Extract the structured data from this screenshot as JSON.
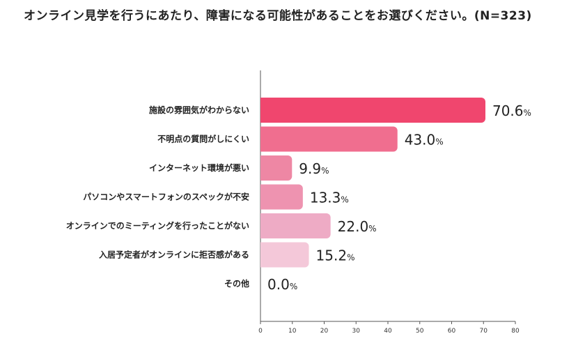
{
  "chart_data": {
    "type": "bar",
    "orientation": "horizontal",
    "title": "オンライン見学を行うにあたり、障害になる可能性があることをお選びください。(N=323)",
    "categories": [
      "施設の雰囲気がわからない",
      "不明点の質問がしにくい",
      "インターネット環境が悪い",
      "パソコンやスマートフォンのスペックが不安",
      "オンラインでのミーティングを行ったことがない",
      "入居予定者がオンラインに拒否感がある",
      "その他"
    ],
    "values": [
      70.6,
      43.0,
      9.9,
      13.3,
      22.0,
      15.2,
      0.0
    ],
    "value_labels": [
      "70.6",
      "43.0",
      "9.9",
      "13.3",
      "22.0",
      "15.2",
      "0.0"
    ],
    "unit": "%",
    "xlim": [
      0,
      80
    ],
    "xticks": [
      0,
      10,
      20,
      30,
      40,
      50,
      60,
      70,
      80
    ],
    "colors": [
      "#f0466e",
      "#f06e8f",
      "#ee87a4",
      "#ee93b0",
      "#eeabc5",
      "#f4c8d9",
      "#f8dde7"
    ],
    "grid": false,
    "legend": "none"
  }
}
